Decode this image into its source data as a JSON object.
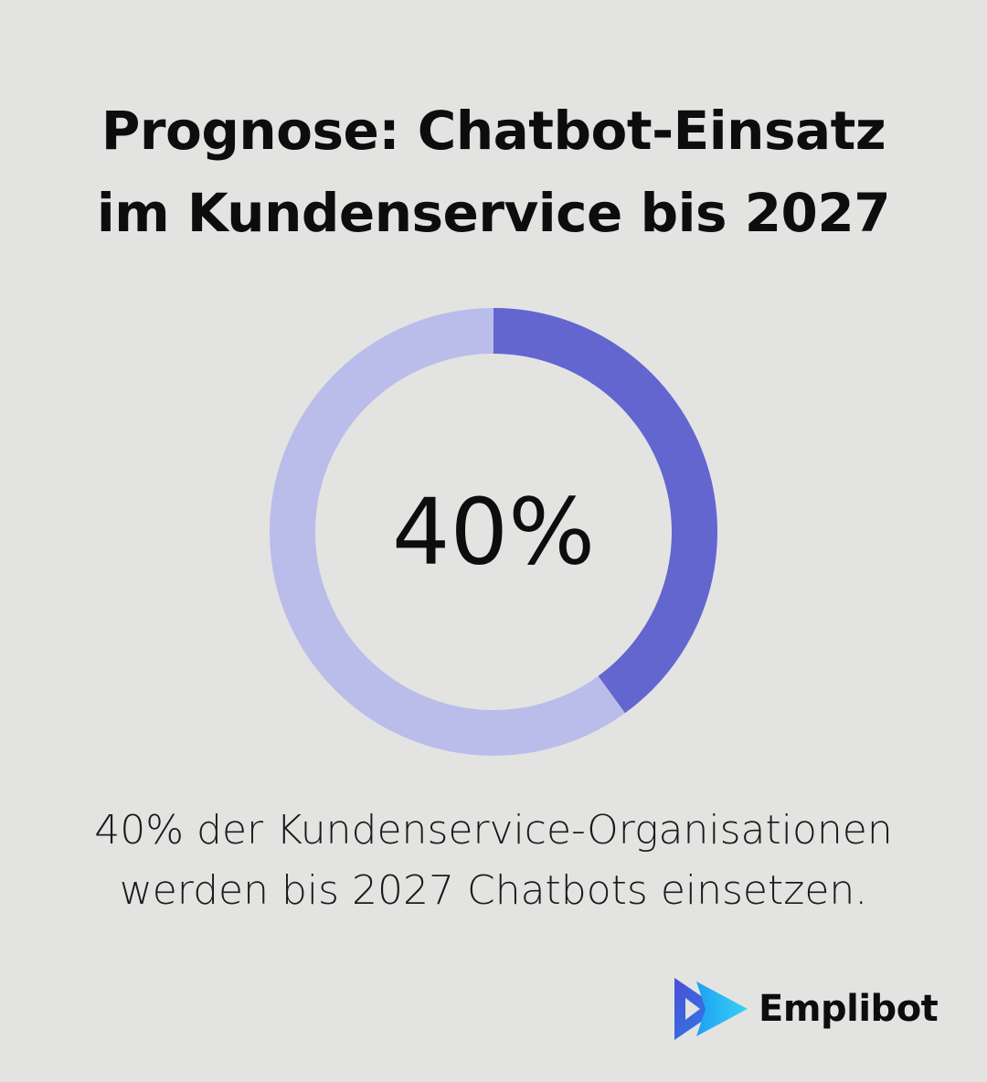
{
  "title": {
    "line1": "Prognose: Chatbot-Einsatz",
    "line2": "im Kundenservice bis 2027"
  },
  "chart_data": {
    "type": "pie",
    "variant": "donut",
    "value_percent": 40,
    "center_label": "40%",
    "colors": {
      "filled": "#6366cf",
      "remaining": "#babdea"
    }
  },
  "caption": {
    "line1": "40% der Kundenservice-Organisationen",
    "line2": "werden bis 2027 Chatbots einsetzen."
  },
  "brand": {
    "name": "Emplibot",
    "logo_icon": "emplibot-play-logo-icon"
  },
  "colors": {
    "background": "#e3e4e2",
    "text": "#0d0d0d"
  }
}
